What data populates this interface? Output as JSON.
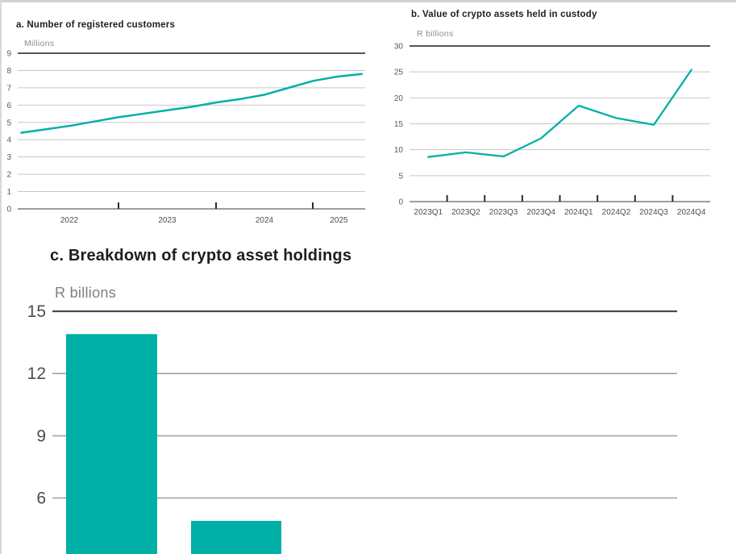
{
  "page": {
    "colors": {
      "accent_teal": "#00B0A6",
      "title_text": "#1e1e1e",
      "unit_text": "#8d8d8d",
      "gridline_light": "#c7c7c7",
      "gridline_dark": "#3d3d3d"
    }
  },
  "chart_data": [
    {
      "id": "a",
      "type": "line",
      "title": "a. Number of registered customers",
      "ylabel": "Millions",
      "ylim": [
        0,
        9
      ],
      "yticks": [
        0,
        1,
        2,
        3,
        4,
        5,
        6,
        7,
        8,
        9
      ],
      "x": [
        2022.0,
        2022.25,
        2022.5,
        2022.75,
        2023.0,
        2023.25,
        2023.5,
        2023.75,
        2024.0,
        2024.25,
        2024.5,
        2024.75,
        2025.0,
        2025.25,
        2025.5
      ],
      "values": [
        4.4,
        4.6,
        4.8,
        5.05,
        5.3,
        5.5,
        5.7,
        5.9,
        6.15,
        6.35,
        6.6,
        7.0,
        7.4,
        7.65,
        7.8
      ],
      "xtick_labels": [
        "2022",
        "2023",
        "2024",
        "2025"
      ],
      "grid": true,
      "legend": "none",
      "line_color": "#00B0A6"
    },
    {
      "id": "b",
      "type": "line",
      "title": "b. Value of crypto assets held in custody",
      "ylabel": "R billions",
      "ylim": [
        0,
        30
      ],
      "yticks": [
        0,
        5,
        10,
        15,
        20,
        25,
        30
      ],
      "categories": [
        "2023Q1",
        "2023Q2",
        "2023Q3",
        "2023Q4",
        "2024Q1",
        "2024Q2",
        "2024Q3",
        "2024Q4"
      ],
      "values": [
        8.6,
        9.5,
        8.7,
        12.2,
        18.5,
        16.1,
        14.8,
        25.4
      ],
      "grid": true,
      "legend": "none",
      "line_color": "#00B0A6"
    },
    {
      "id": "c",
      "type": "bar",
      "title": "c. Breakdown of crypto asset holdings",
      "ylabel": "R billions",
      "yticks_visible": [
        15,
        12,
        9,
        6
      ],
      "ylim_visible": [
        3.3,
        15
      ],
      "values": [
        13.9,
        4.9
      ],
      "categories": [
        "",
        ""
      ],
      "cropped_bottom": true,
      "grid": true,
      "legend": "none",
      "bar_color": "#00B0A6"
    }
  ]
}
